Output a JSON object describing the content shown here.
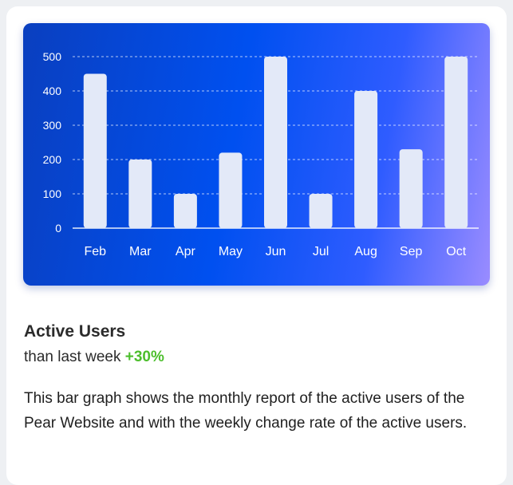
{
  "card": {
    "title": "Active Users",
    "change_prefix": "than last week",
    "change_value": "+30%",
    "change_color": "#4cbe2c",
    "description": "This bar graph shows the monthly report of the active users of the Pear Website and with the weekly change rate of the active users."
  },
  "chart_data": {
    "type": "bar",
    "categories": [
      "Feb",
      "Mar",
      "Apr",
      "May",
      "Jun",
      "Jul",
      "Aug",
      "Sep",
      "Oct"
    ],
    "values": [
      450,
      200,
      100,
      220,
      500,
      100,
      400,
      230,
      500
    ],
    "y_ticks": [
      0,
      100,
      200,
      300,
      400,
      500
    ],
    "ylim": [
      0,
      500
    ],
    "grid": true,
    "bar_color": "#e3e9f8"
  }
}
